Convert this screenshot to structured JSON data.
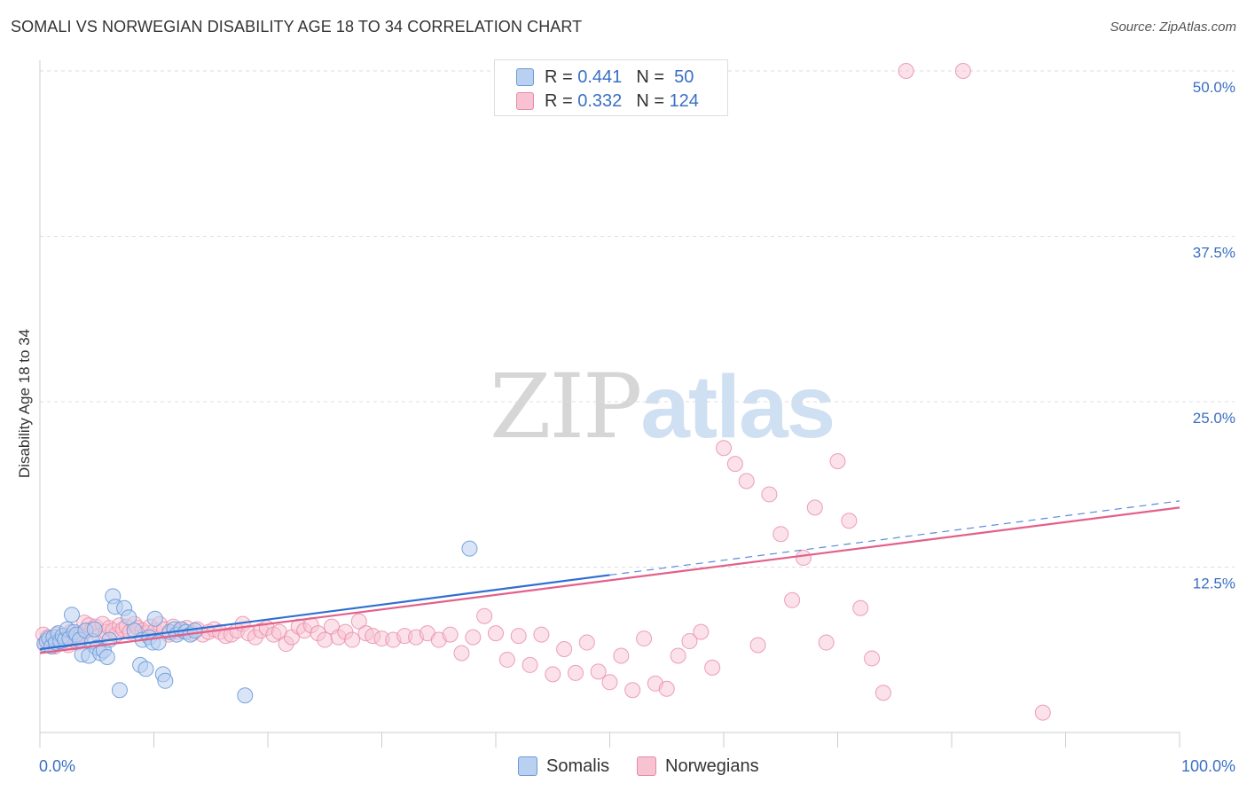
{
  "header": {
    "title": "SOMALI VS NORWEGIAN DISABILITY AGE 18 TO 34 CORRELATION CHART",
    "source": "Source: ZipAtlas.com"
  },
  "watermark": {
    "zip": "ZIP",
    "atlas": "atlas"
  },
  "legend": {
    "somalis": {
      "r_label": "R =",
      "r_value": "0.441",
      "n_label": "N =",
      "n_value": "50"
    },
    "norwegians": {
      "r_label": "R =",
      "r_value": "0.332",
      "n_label": "N =",
      "n_value": "124"
    }
  },
  "bottom_legend": {
    "somalis": "Somalis",
    "norwegians": "Norwegians"
  },
  "colors": {
    "somalis_fill": "#b9d0f0",
    "somalis_stroke": "#6b9bd8",
    "somalis_line": "#2f6fd0",
    "norwegians_fill": "#f7c3d3",
    "norwegians_stroke": "#e88aa8",
    "norwegians_line": "#e2608a",
    "axis_label": "#3a6fc4",
    "grid": "#dddddd"
  },
  "chart_data": {
    "type": "scatter",
    "title": "SOMALI VS NORWEGIAN DISABILITY AGE 18 TO 34 CORRELATION CHART",
    "xlabel": "",
    "ylabel": "Disability Age 18 to 34",
    "xlim": [
      0,
      100
    ],
    "ylim": [
      0,
      50
    ],
    "x_tick_labels": [
      "0.0%",
      "100.0%"
    ],
    "y_ticks": [
      12.5,
      25.0,
      37.5,
      50.0
    ],
    "y_tick_labels": [
      "12.5%",
      "25.0%",
      "37.5%",
      "50.0%"
    ],
    "grid": true,
    "legend_position": "top-center",
    "series": [
      {
        "name": "Somalis",
        "r": 0.441,
        "n": 50,
        "trend": {
          "x_start": 0,
          "y_start": 6.3,
          "x_solid_end": 50,
          "y_solid_end": 11.9,
          "x_dash_end": 100,
          "y_dash_end": 17.5
        },
        "points": [
          [
            0.4,
            6.7
          ],
          [
            0.6,
            6.9
          ],
          [
            0.8,
            7.1
          ],
          [
            1.0,
            6.5
          ],
          [
            1.2,
            7.2
          ],
          [
            1.4,
            6.8
          ],
          [
            1.6,
            7.5
          ],
          [
            1.8,
            6.9
          ],
          [
            2.0,
            7.3
          ],
          [
            2.2,
            7.0
          ],
          [
            2.4,
            7.8
          ],
          [
            2.6,
            7.1
          ],
          [
            2.8,
            8.9
          ],
          [
            3.0,
            7.6
          ],
          [
            3.2,
            7.4
          ],
          [
            3.5,
            7.0
          ],
          [
            3.7,
            5.9
          ],
          [
            4.0,
            7.7
          ],
          [
            4.3,
            5.8
          ],
          [
            4.6,
            6.9
          ],
          [
            4.8,
            7.8
          ],
          [
            5.0,
            6.4
          ],
          [
            5.3,
            6.0
          ],
          [
            5.6,
            6.2
          ],
          [
            5.9,
            5.7
          ],
          [
            6.1,
            7.0
          ],
          [
            6.4,
            10.3
          ],
          [
            6.6,
            9.5
          ],
          [
            7.0,
            3.2
          ],
          [
            7.4,
            9.4
          ],
          [
            7.8,
            8.7
          ],
          [
            8.3,
            7.7
          ],
          [
            8.8,
            5.1
          ],
          [
            9.0,
            7.0
          ],
          [
            9.3,
            4.8
          ],
          [
            9.6,
            7.2
          ],
          [
            9.9,
            6.8
          ],
          [
            10.1,
            8.6
          ],
          [
            10.4,
            6.8
          ],
          [
            10.8,
            4.4
          ],
          [
            11.0,
            3.9
          ],
          [
            11.4,
            7.6
          ],
          [
            11.8,
            7.8
          ],
          [
            12.0,
            7.4
          ],
          [
            12.4,
            7.8
          ],
          [
            12.8,
            7.6
          ],
          [
            13.2,
            7.4
          ],
          [
            13.6,
            7.7
          ],
          [
            18.0,
            2.8
          ],
          [
            37.7,
            13.9
          ]
        ]
      },
      {
        "name": "Norwegians",
        "r": 0.332,
        "n": 124,
        "trend": {
          "x_start": 0,
          "y_start": 6.0,
          "x_end": 100,
          "y_end": 17.0
        },
        "points": [
          [
            0.3,
            7.4
          ],
          [
            0.5,
            6.6
          ],
          [
            0.7,
            7.2
          ],
          [
            0.9,
            6.9
          ],
          [
            1.1,
            7.0
          ],
          [
            1.3,
            6.5
          ],
          [
            1.5,
            7.4
          ],
          [
            1.7,
            6.9
          ],
          [
            1.9,
            6.8
          ],
          [
            2.1,
            7.1
          ],
          [
            2.3,
            7.3
          ],
          [
            2.5,
            6.6
          ],
          [
            2.7,
            7.6
          ],
          [
            2.9,
            7.0
          ],
          [
            3.1,
            7.2
          ],
          [
            3.3,
            6.8
          ],
          [
            3.5,
            7.4
          ],
          [
            3.7,
            7.2
          ],
          [
            3.9,
            8.3
          ],
          [
            4.1,
            7.7
          ],
          [
            4.3,
            8.1
          ],
          [
            4.6,
            7.8
          ],
          [
            4.9,
            8.0
          ],
          [
            5.2,
            7.3
          ],
          [
            5.5,
            8.2
          ],
          [
            5.8,
            7.6
          ],
          [
            6.1,
            7.9
          ],
          [
            6.4,
            7.7
          ],
          [
            6.7,
            7.4
          ],
          [
            7.0,
            8.1
          ],
          [
            7.3,
            7.8
          ],
          [
            7.6,
            8.0
          ],
          [
            7.9,
            7.6
          ],
          [
            8.3,
            8.2
          ],
          [
            8.6,
            7.9
          ],
          [
            9.0,
            7.7
          ],
          [
            9.3,
            7.5
          ],
          [
            9.7,
            8.0
          ],
          [
            10.1,
            7.7
          ],
          [
            10.5,
            8.2
          ],
          [
            10.9,
            7.8
          ],
          [
            11.3,
            7.4
          ],
          [
            11.7,
            8.0
          ],
          [
            12.1,
            7.6
          ],
          [
            12.5,
            7.7
          ],
          [
            12.9,
            7.9
          ],
          [
            13.4,
            7.5
          ],
          [
            13.8,
            7.8
          ],
          [
            14.3,
            7.4
          ],
          [
            14.8,
            7.6
          ],
          [
            15.3,
            7.8
          ],
          [
            15.8,
            7.6
          ],
          [
            16.3,
            7.3
          ],
          [
            16.8,
            7.4
          ],
          [
            17.3,
            7.7
          ],
          [
            17.8,
            8.2
          ],
          [
            18.3,
            7.5
          ],
          [
            18.9,
            7.2
          ],
          [
            19.4,
            7.7
          ],
          [
            19.9,
            7.9
          ],
          [
            20.5,
            7.4
          ],
          [
            21.0,
            7.6
          ],
          [
            21.6,
            6.7
          ],
          [
            22.1,
            7.2
          ],
          [
            22.7,
            8.0
          ],
          [
            23.2,
            7.7
          ],
          [
            23.8,
            8.1
          ],
          [
            24.4,
            7.5
          ],
          [
            25.0,
            7.0
          ],
          [
            25.6,
            8.0
          ],
          [
            26.2,
            7.2
          ],
          [
            26.8,
            7.6
          ],
          [
            27.4,
            7.0
          ],
          [
            28.0,
            8.4
          ],
          [
            28.6,
            7.5
          ],
          [
            29.2,
            7.3
          ],
          [
            30.0,
            7.1
          ],
          [
            31.0,
            7.0
          ],
          [
            32.0,
            7.3
          ],
          [
            33.0,
            7.2
          ],
          [
            34.0,
            7.5
          ],
          [
            35.0,
            7.0
          ],
          [
            36.0,
            7.4
          ],
          [
            37.0,
            6.0
          ],
          [
            38.0,
            7.2
          ],
          [
            39.0,
            8.8
          ],
          [
            40.0,
            7.5
          ],
          [
            41.0,
            5.5
          ],
          [
            42.0,
            7.3
          ],
          [
            43.0,
            5.1
          ],
          [
            44.0,
            7.4
          ],
          [
            45.0,
            4.4
          ],
          [
            46.0,
            6.3
          ],
          [
            47.0,
            4.5
          ],
          [
            48.0,
            6.8
          ],
          [
            49.0,
            4.6
          ],
          [
            50.0,
            3.8
          ],
          [
            51.0,
            5.8
          ],
          [
            52.0,
            3.2
          ],
          [
            53.0,
            7.1
          ],
          [
            54.0,
            3.7
          ],
          [
            55.0,
            3.3
          ],
          [
            56.0,
            5.8
          ],
          [
            57.0,
            6.9
          ],
          [
            58.0,
            7.6
          ],
          [
            59.0,
            4.9
          ],
          [
            60.0,
            21.5
          ],
          [
            61.0,
            20.3
          ],
          [
            62.0,
            19.0
          ],
          [
            63.0,
            6.6
          ],
          [
            64.0,
            18.0
          ],
          [
            65.0,
            15.0
          ],
          [
            66.0,
            10.0
          ],
          [
            67.0,
            13.2
          ],
          [
            68.0,
            17.0
          ],
          [
            69.0,
            6.8
          ],
          [
            70.0,
            20.5
          ],
          [
            71.0,
            16.0
          ],
          [
            72.0,
            9.4
          ],
          [
            73.0,
            5.6
          ],
          [
            74.0,
            3.0
          ],
          [
            76.0,
            50.0
          ],
          [
            81.0,
            50.0
          ],
          [
            88.0,
            1.5
          ]
        ]
      }
    ]
  }
}
